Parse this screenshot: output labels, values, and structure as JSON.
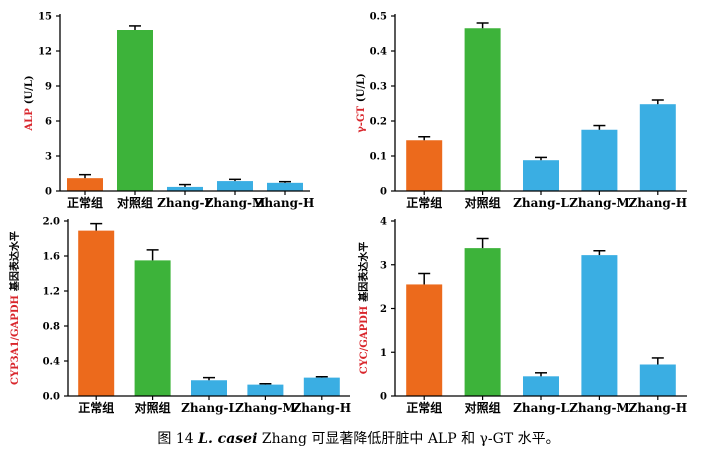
{
  "caption": {
    "prefix": "图 14",
    "species": "L. casei",
    "rest": "Zhang 可显著降低肝脏中 ALP 和 γ-GT 水平。"
  },
  "colors": {
    "orange": "#ec6a1c",
    "green": "#3db33a",
    "blue": "#3aaee3",
    "label_red": "#d9262c",
    "axis": "#000000"
  },
  "chart_data": [
    {
      "type": "bar",
      "categories": [
        "正常组",
        "对照组",
        "Zhang-L",
        "Zhang-M",
        "Zhang-H"
      ],
      "values": [
        1.1,
        13.8,
        0.35,
        0.85,
        0.7
      ],
      "errors": [
        0.3,
        0.35,
        0.2,
        0.15,
        0.1
      ],
      "ylabel_colored": "ALP",
      "ylabel_plain": "(U/L)",
      "ylim": [
        0,
        15
      ],
      "yticks": [
        0,
        3,
        6,
        9,
        12,
        15
      ],
      "ytick_labels": [
        "0",
        "3",
        "6",
        "9",
        "12",
        "15"
      ],
      "bar_colors": [
        "orange",
        "green",
        "blue",
        "blue",
        "blue"
      ]
    },
    {
      "type": "bar",
      "categories": [
        "正常组",
        "对照组",
        "Zhang-L",
        "Zhang-M",
        "Zhang-H"
      ],
      "values": [
        0.145,
        0.465,
        0.088,
        0.175,
        0.248
      ],
      "errors": [
        0.01,
        0.015,
        0.008,
        0.012,
        0.012
      ],
      "ylabel_colored": "γ-GT",
      "ylabel_plain": "(U/L)",
      "ylim": [
        0,
        0.5
      ],
      "yticks": [
        0,
        0.1,
        0.2,
        0.3,
        0.4,
        0.5
      ],
      "ytick_labels": [
        "0",
        "0.1",
        "0.2",
        "0.3",
        "0.4",
        "0.5"
      ],
      "bar_colors": [
        "orange",
        "green",
        "blue",
        "blue",
        "blue"
      ]
    },
    {
      "type": "bar",
      "categories": [
        "正常组",
        "对照组",
        "Zhang-L",
        "Zhang-M",
        "Zhang-H"
      ],
      "values": [
        1.89,
        1.55,
        0.18,
        0.13,
        0.21
      ],
      "errors": [
        0.08,
        0.12,
        0.03,
        0.01,
        0.01
      ],
      "ylabel_colored": "CYP3A1/GAPDH",
      "ylabel_plain": "基因表达水平",
      "ylim": [
        0,
        2.0
      ],
      "yticks": [
        0,
        0.4,
        0.8,
        1.2,
        1.6,
        2.0
      ],
      "ytick_labels": [
        "0.0",
        "0.4",
        "0.8",
        "1.2",
        "1.6",
        "2.0"
      ],
      "bar_colors": [
        "orange",
        "green",
        "blue",
        "blue",
        "blue"
      ]
    },
    {
      "type": "bar",
      "categories": [
        "正常组",
        "对照组",
        "Zhang-L",
        "Zhang-M",
        "Zhang-H"
      ],
      "values": [
        2.55,
        3.38,
        0.45,
        3.22,
        0.72
      ],
      "errors": [
        0.25,
        0.22,
        0.08,
        0.1,
        0.15
      ],
      "ylabel_colored": "CYC/GAPDH",
      "ylabel_plain": "基因表达水平",
      "ylim": [
        0,
        4
      ],
      "yticks": [
        0,
        1,
        2,
        3,
        4
      ],
      "ytick_labels": [
        "0",
        "1",
        "2",
        "3",
        "4"
      ],
      "bar_colors": [
        "orange",
        "green",
        "blue",
        "blue",
        "blue"
      ]
    }
  ]
}
